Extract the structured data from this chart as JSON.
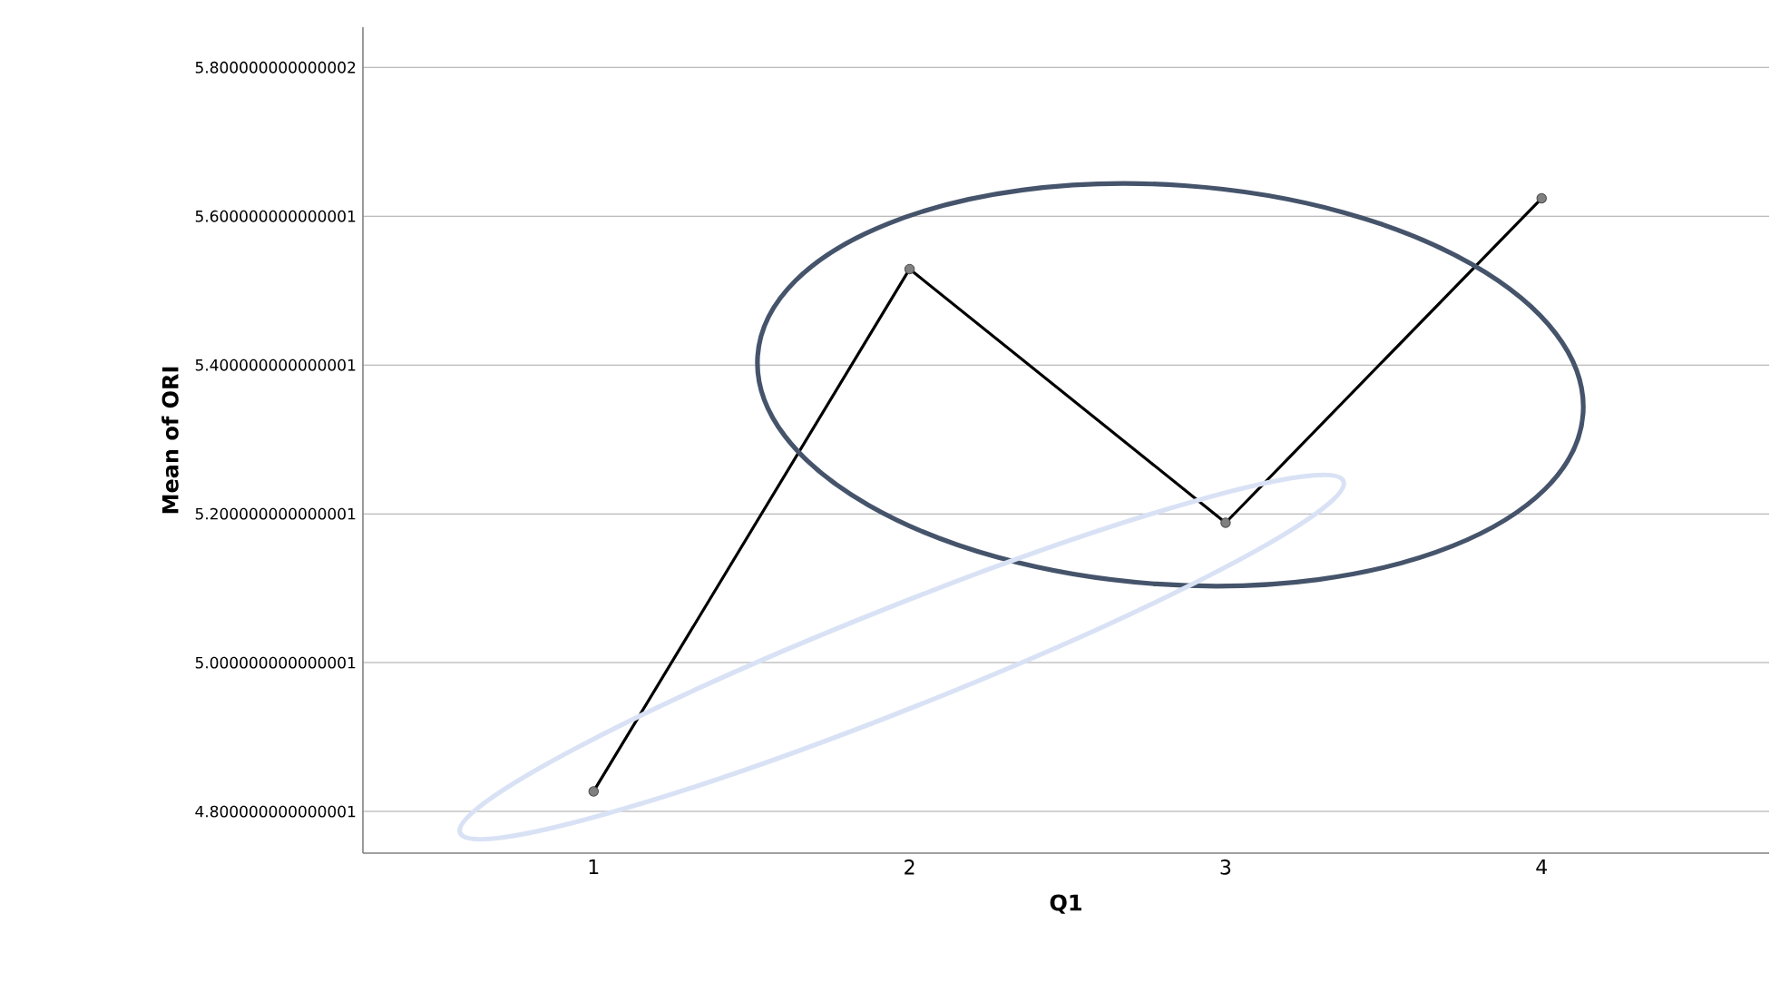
{
  "chart_data": {
    "type": "line",
    "xlabel": "Q1",
    "ylabel": "Mean of ORI",
    "categories": [
      "1",
      "2",
      "3",
      "4"
    ],
    "series": [
      {
        "color": "#000000",
        "values": [
          4.827,
          5.529,
          5.188,
          5.624
        ]
      }
    ],
    "ylim": [
      4.744,
      5.854
    ],
    "yticks": [
      {
        "value": 4.8,
        "label": "4.800000000000001"
      },
      {
        "value": 5.0,
        "label": "5.000000000000001"
      },
      {
        "value": 5.2,
        "label": "5.200000000000001"
      },
      {
        "value": 5.4,
        "label": "5.400000000000001"
      },
      {
        "value": 5.6,
        "label": "5.600000000000001"
      },
      {
        "value": 5.8,
        "label": "5.800000000000002"
      }
    ],
    "grid": "y",
    "marker": "circle",
    "line_style": "solid"
  }
}
